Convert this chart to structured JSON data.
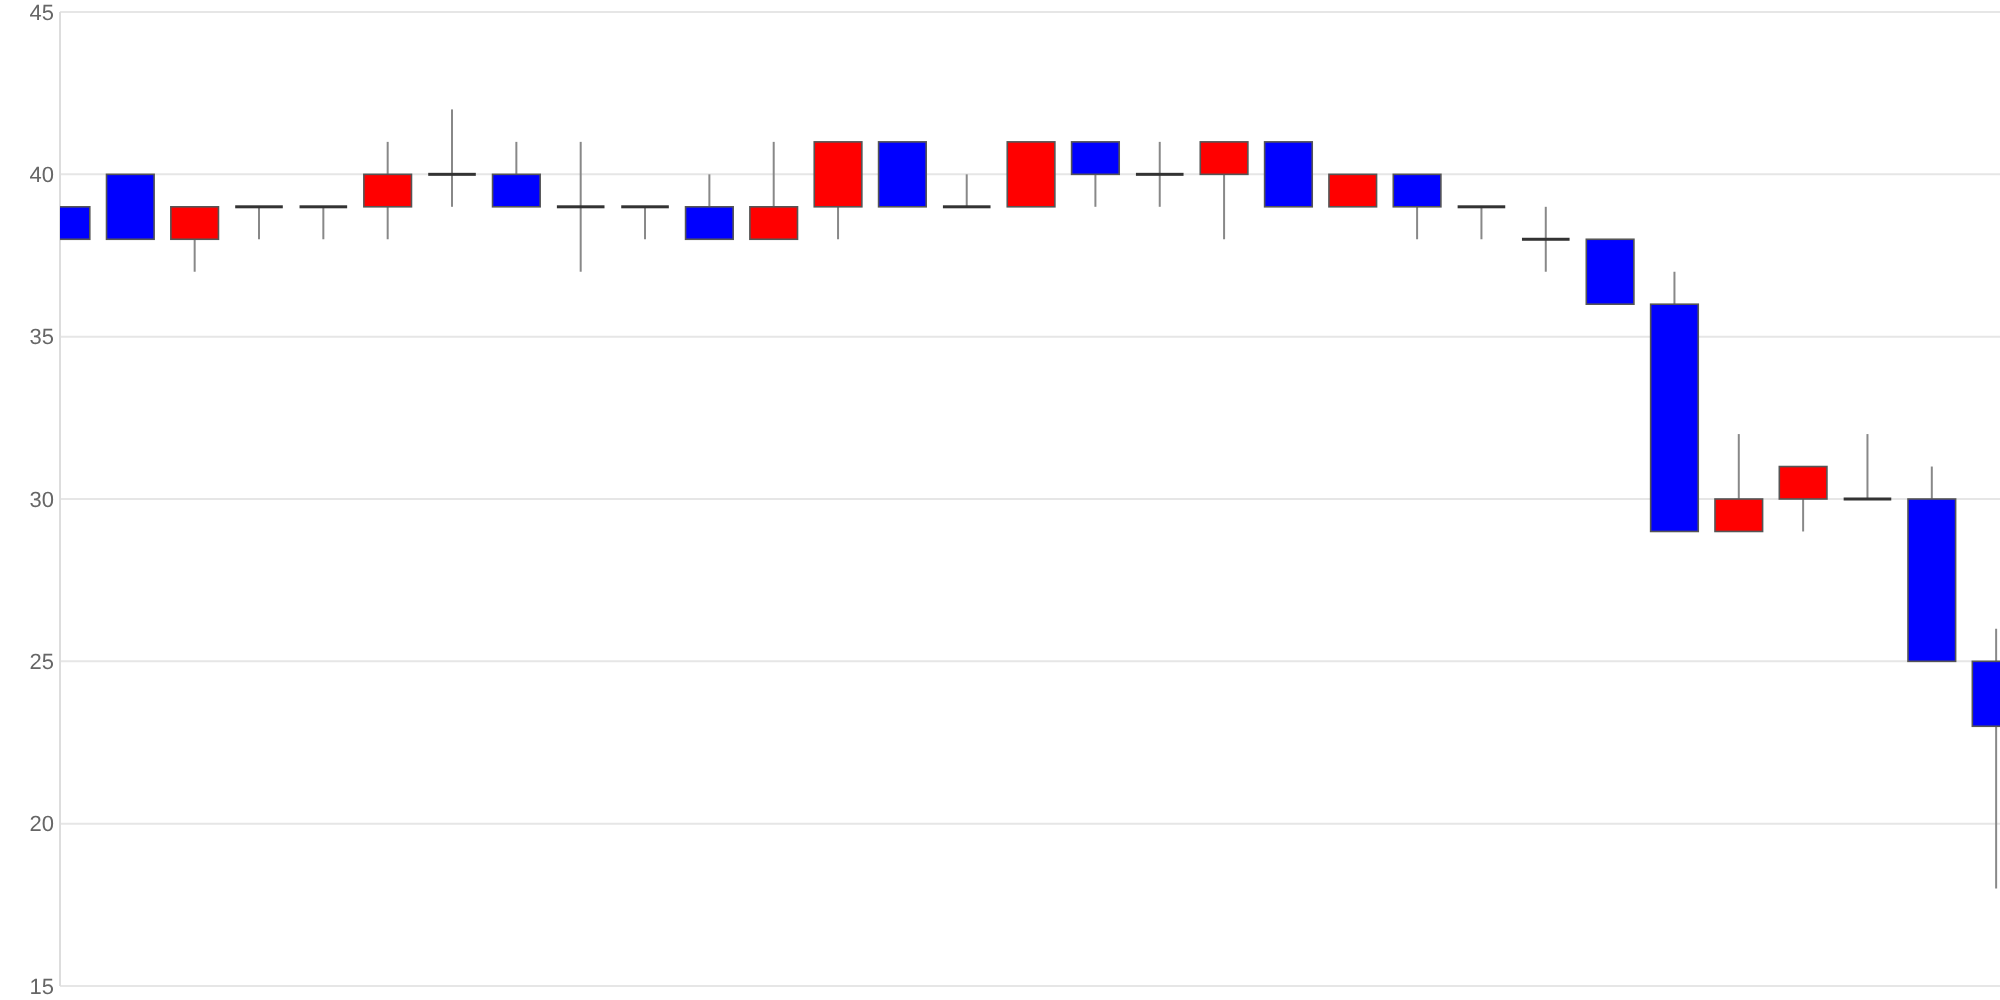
{
  "chart_data": {
    "type": "candlestick",
    "categories": [
      null,
      null,
      null,
      null,
      null,
      null,
      null,
      null,
      null,
      null,
      null,
      null,
      null,
      null,
      null,
      null,
      null,
      null,
      null,
      null,
      null,
      null,
      null,
      null,
      null,
      null,
      null,
      null,
      null,
      null,
      null
    ],
    "ohlc": [
      [
        39,
        39,
        38,
        38
      ],
      [
        40,
        40,
        38,
        38
      ],
      [
        38,
        39,
        37,
        39
      ],
      [
        39,
        39,
        38,
        39
      ],
      [
        39,
        39,
        38,
        39
      ],
      [
        39,
        41,
        38,
        40
      ],
      [
        40,
        42,
        39,
        40
      ],
      [
        40,
        41,
        39,
        39
      ],
      [
        39,
        41,
        37,
        39
      ],
      [
        39,
        39,
        38,
        39
      ],
      [
        39,
        40,
        38,
        38
      ],
      [
        38,
        41,
        38,
        39
      ],
      [
        39,
        41,
        38,
        41
      ],
      [
        41,
        41,
        39,
        39
      ],
      [
        39,
        40,
        39,
        39
      ],
      [
        39,
        41,
        39,
        41
      ],
      [
        41,
        41,
        39,
        40
      ],
      [
        40,
        41,
        39,
        40
      ],
      [
        40,
        41,
        38,
        41
      ],
      [
        41,
        41,
        39,
        39
      ],
      [
        39,
        40,
        39,
        40
      ],
      [
        40,
        40,
        38,
        39
      ],
      [
        39,
        39,
        38,
        39
      ],
      [
        38,
        39,
        37,
        38
      ],
      [
        38,
        38,
        36,
        36
      ],
      [
        36,
        37,
        29,
        29
      ],
      [
        29,
        32,
        29,
        30
      ],
      [
        30,
        31,
        29,
        31
      ],
      [
        30,
        32,
        30,
        30
      ],
      [
        30,
        31,
        25,
        25
      ],
      [
        25,
        26,
        18,
        23
      ]
    ],
    "colors": [
      "#0000ff",
      "#0000ff",
      "#ff0000",
      "#333333",
      "#333333",
      "#ff0000",
      "#333333",
      "#0000ff",
      "#333333",
      "#333333",
      "#0000ff",
      "#ff0000",
      "#ff0000",
      "#0000ff",
      "#333333",
      "#ff0000",
      "#0000ff",
      "#333333",
      "#ff0000",
      "#0000ff",
      "#ff0000",
      "#0000ff",
      "#333333",
      "#333333",
      "#0000ff",
      "#0000ff",
      "#ff0000",
      "#ff0000",
      "#333333",
      "#0000ff",
      "#0000ff"
    ],
    "ylim": [
      15,
      45
    ],
    "yticks": [
      15,
      20,
      25,
      30,
      35,
      40,
      45
    ],
    "grid": "y"
  }
}
